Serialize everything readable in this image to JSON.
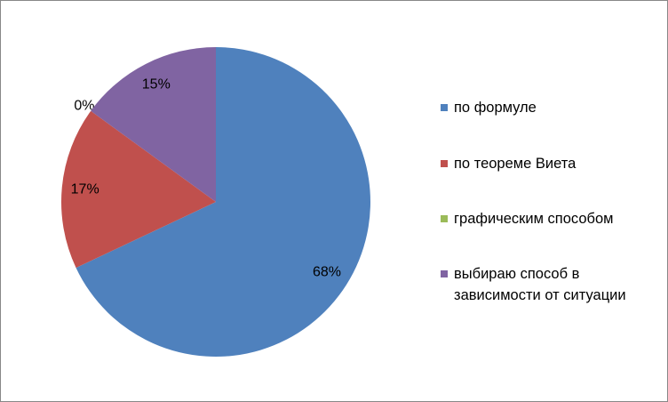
{
  "chart_data": {
    "type": "pie",
    "categories": [
      "по формуле",
      "по теореме Виета",
      "графическим способом",
      "выбираю способ в зависимости от ситуации"
    ],
    "values": [
      68,
      17,
      0,
      15
    ],
    "value_labels": [
      "68%",
      "17%",
      "0%",
      "15%"
    ],
    "colors": [
      "#4f81bd",
      "#c0504d",
      "#9bbb59",
      "#8064a2"
    ],
    "legend": "right"
  }
}
